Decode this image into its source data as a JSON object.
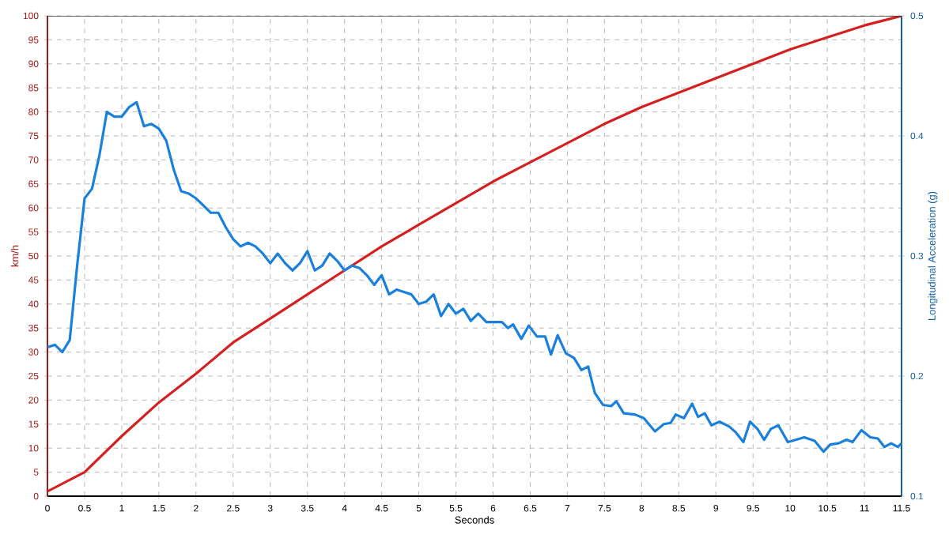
{
  "chart_data": {
    "type": "line",
    "xlabel": "Seconds",
    "ylabel": "km/h",
    "y2label": "Longitudinal Acceleration (g)",
    "xlim": [
      0,
      11.5
    ],
    "ylim": [
      0,
      100
    ],
    "y2lim": [
      0.1,
      0.5
    ],
    "xticks": [
      0,
      0.5,
      1,
      1.5,
      2,
      2.5,
      3,
      3.5,
      4,
      4.5,
      5,
      5.5,
      6,
      6.5,
      7,
      7.5,
      8,
      8.5,
      9,
      9.5,
      10,
      10.5,
      11,
      11.5
    ],
    "yticks": [
      0,
      5,
      10,
      15,
      20,
      25,
      30,
      35,
      40,
      45,
      50,
      55,
      60,
      65,
      70,
      75,
      80,
      85,
      90,
      95,
      100
    ],
    "y2ticks": [
      0.1,
      0.2,
      0.3,
      0.4,
      0.5
    ],
    "grid": true,
    "line_style": "solid",
    "marker": "none",
    "series": [
      {
        "color": "#d42020",
        "x": [
          0,
          0.5,
          1,
          1.5,
          2,
          2.5,
          3,
          3.5,
          4,
          4.5,
          5,
          5.5,
          6,
          6.5,
          7,
          7.5,
          8,
          8.5,
          9,
          9.5,
          10,
          10.5,
          11,
          11.5
        ],
        "values": [
          1,
          5,
          12.5,
          19.5,
          25.5,
          32,
          37,
          42,
          47,
          52,
          56.5,
          61,
          65.5,
          69.5,
          73.5,
          77.5,
          81,
          84,
          87,
          90,
          93,
          95.5,
          98,
          100
        ]
      },
      {
        "color": "#1a80dc",
        "axis": "y2",
        "x": [
          0,
          0.1,
          0.2,
          0.3,
          0.4,
          0.5,
          0.6,
          0.7,
          0.8,
          0.9,
          1.0,
          1.1,
          1.2,
          1.3,
          1.4,
          1.5,
          1.6,
          1.7,
          1.8,
          1.9,
          2.0,
          2.1,
          2.2,
          2.3,
          2.4,
          2.5,
          2.6,
          2.7,
          2.8,
          2.9,
          3.0,
          3.1,
          3.2,
          3.3,
          3.4,
          3.5,
          3.6,
          3.7,
          3.8,
          3.9,
          4.0,
          4.1,
          4.2,
          4.3,
          4.4,
          4.5,
          4.6,
          4.7,
          4.8,
          4.9,
          5.0,
          5.1,
          5.2,
          5.3,
          5.4,
          5.5,
          5.6,
          5.7,
          5.8,
          5.91,
          6.12,
          6.2,
          6.27,
          6.38,
          6.48,
          6.59,
          6.7,
          6.78,
          6.87,
          6.98,
          7.09,
          7.19,
          7.28,
          7.37,
          7.48,
          7.59,
          7.66,
          7.76,
          7.91,
          8.03,
          8.18,
          8.3,
          8.39,
          8.46,
          8.57,
          8.68,
          8.76,
          8.85,
          8.94,
          9.05,
          9.18,
          9.27,
          9.37,
          9.46,
          9.56,
          9.65,
          9.74,
          9.84,
          9.97,
          10.08,
          10.19,
          10.33,
          10.45,
          10.54,
          10.65,
          10.76,
          10.84,
          10.96,
          11.08,
          11.18,
          11.27,
          11.36,
          11.45,
          11.5
        ],
        "values": [
          0.224,
          0.226,
          0.22,
          0.23,
          0.292,
          0.348,
          0.356,
          0.384,
          0.42,
          0.416,
          0.416,
          0.424,
          0.428,
          0.408,
          0.41,
          0.406,
          0.396,
          0.372,
          0.354,
          0.352,
          0.348,
          0.342,
          0.336,
          0.336,
          0.324,
          0.314,
          0.308,
          0.311,
          0.308,
          0.302,
          0.294,
          0.302,
          0.294,
          0.288,
          0.294,
          0.304,
          0.288,
          0.292,
          0.302,
          0.296,
          0.288,
          0.292,
          0.29,
          0.284,
          0.276,
          0.284,
          0.268,
          0.272,
          0.27,
          0.268,
          0.26,
          0.262,
          0.268,
          0.25,
          0.26,
          0.252,
          0.256,
          0.246,
          0.252,
          0.245,
          0.245,
          0.24,
          0.243,
          0.231,
          0.242,
          0.233,
          0.233,
          0.218,
          0.234,
          0.219,
          0.215,
          0.205,
          0.208,
          0.186,
          0.176,
          0.175,
          0.179,
          0.169,
          0.168,
          0.165,
          0.154,
          0.16,
          0.161,
          0.168,
          0.165,
          0.177,
          0.166,
          0.169,
          0.159,
          0.162,
          0.158,
          0.153,
          0.145,
          0.162,
          0.156,
          0.147,
          0.156,
          0.159,
          0.145,
          0.147,
          0.149,
          0.146,
          0.137,
          0.143,
          0.144,
          0.147,
          0.145,
          0.155,
          0.149,
          0.148,
          0.141,
          0.144,
          0.141,
          0.144
        ]
      }
    ]
  }
}
